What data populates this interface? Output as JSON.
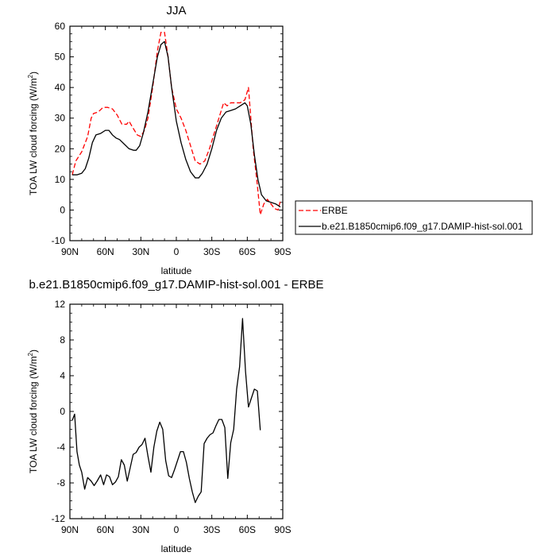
{
  "chart_data": [
    {
      "type": "line",
      "title": "JJA",
      "xlabel": "latitude",
      "ylabel": "TOA LW cloud forcing (W/m",
      "ylabel_sup": "2",
      "ylabel_close": ")",
      "xlim": [
        90,
        -90
      ],
      "ylim": [
        -10,
        60
      ],
      "xticks": [
        {
          "value": 90,
          "label": "90N"
        },
        {
          "value": 60,
          "label": "60N"
        },
        {
          "value": 30,
          "label": "30N"
        },
        {
          "value": 0,
          "label": "0"
        },
        {
          "value": -30,
          "label": "30S"
        },
        {
          "value": -60,
          "label": "60S"
        },
        {
          "value": -90,
          "label": "90S"
        }
      ],
      "yticks": [
        -10,
        0,
        10,
        20,
        30,
        40,
        50,
        60
      ],
      "legend_position": "right",
      "series": [
        {
          "name": "ERBE",
          "style": "dashed",
          "color": "#ff0000",
          "points": [
            [
              88,
              11.5
            ],
            [
              85,
              16
            ],
            [
              80,
              19
            ],
            [
              77,
              22
            ],
            [
              75,
              24
            ],
            [
              72,
              30
            ],
            [
              70,
              31.5
            ],
            [
              66,
              32
            ],
            [
              62,
              33.5
            ],
            [
              58,
              33.5
            ],
            [
              54,
              33
            ],
            [
              50,
              31
            ],
            [
              46,
              28
            ],
            [
              42,
              28
            ],
            [
              40,
              29
            ],
            [
              37,
              27
            ],
            [
              33,
              24.5
            ],
            [
              30,
              24
            ],
            [
              27,
              26
            ],
            [
              24,
              30
            ],
            [
              20,
              40
            ],
            [
              16,
              52
            ],
            [
              13,
              58
            ],
            [
              10,
              58
            ],
            [
              7,
              50
            ],
            [
              4,
              40
            ],
            [
              0,
              33
            ],
            [
              -4,
              30
            ],
            [
              -8,
              26
            ],
            [
              -12,
              21
            ],
            [
              -16,
              16
            ],
            [
              -20,
              15
            ],
            [
              -24,
              16
            ],
            [
              -28,
              20
            ],
            [
              -32,
              25
            ],
            [
              -36,
              30
            ],
            [
              -40,
              35
            ],
            [
              -43,
              34
            ],
            [
              -46,
              35
            ],
            [
              -50,
              35
            ],
            [
              -54,
              35
            ],
            [
              -58,
              36
            ],
            [
              -61,
              40
            ],
            [
              -62,
              35
            ],
            [
              -65,
              20
            ],
            [
              -68,
              10
            ],
            [
              -71,
              -1.5
            ],
            [
              -74,
              2
            ],
            [
              -77,
              3.5
            ],
            [
              -80,
              2
            ],
            [
              -83,
              0.5
            ],
            [
              -86,
              0
            ],
            [
              -88,
              3
            ]
          ]
        },
        {
          "name": "b.e21.B1850cmip6.f09_g17.DAMIP-hist-sol.001",
          "style": "solid",
          "color": "#000000",
          "points": [
            [
              88,
              11.5
            ],
            [
              84,
              11.5
            ],
            [
              80,
              12
            ],
            [
              77,
              13.5
            ],
            [
              74,
              17
            ],
            [
              71,
              22
            ],
            [
              68,
              24.5
            ],
            [
              64,
              25
            ],
            [
              60,
              26
            ],
            [
              57,
              26
            ],
            [
              54,
              24.5
            ],
            [
              51,
              23.5
            ],
            [
              48,
              23
            ],
            [
              44,
              21.5
            ],
            [
              40,
              20
            ],
            [
              36,
              19.5
            ],
            [
              34,
              19.5
            ],
            [
              31,
              21
            ],
            [
              28,
              25
            ],
            [
              24,
              32
            ],
            [
              20,
              41
            ],
            [
              16,
              50
            ],
            [
              13,
              54
            ],
            [
              10,
              55
            ],
            [
              7,
              50
            ],
            [
              4,
              40
            ],
            [
              0,
              29
            ],
            [
              -4,
              22
            ],
            [
              -8,
              16.5
            ],
            [
              -12,
              12.5
            ],
            [
              -16,
              10.5
            ],
            [
              -19,
              10.5
            ],
            [
              -22,
              12
            ],
            [
              -26,
              15
            ],
            [
              -30,
              20
            ],
            [
              -34,
              26
            ],
            [
              -38,
              30
            ],
            [
              -42,
              32
            ],
            [
              -46,
              32.5
            ],
            [
              -50,
              33
            ],
            [
              -54,
              34
            ],
            [
              -58,
              35
            ],
            [
              -60,
              34
            ],
            [
              -63,
              28
            ],
            [
              -66,
              18
            ],
            [
              -69,
              10
            ],
            [
              -72,
              5
            ],
            [
              -76,
              3
            ],
            [
              -80,
              2.5
            ],
            [
              -84,
              2
            ],
            [
              -88,
              1
            ]
          ]
        }
      ]
    },
    {
      "type": "line",
      "title": "b.e21.B1850cmip6.f09_g17.DAMIP-hist-sol.001 - ERBE",
      "xlabel": "latitude",
      "ylabel": "TOA LW cloud forcing (W/m",
      "ylabel_sup": "2",
      "ylabel_close": ")",
      "xlim": [
        90,
        -90
      ],
      "ylim": [
        -12,
        12
      ],
      "xticks": [
        {
          "value": 90,
          "label": "90N"
        },
        {
          "value": 60,
          "label": "60N"
        },
        {
          "value": 30,
          "label": "30N"
        },
        {
          "value": 0,
          "label": "0"
        },
        {
          "value": -30,
          "label": "30S"
        },
        {
          "value": -60,
          "label": "60S"
        },
        {
          "value": -90,
          "label": "90S"
        }
      ],
      "yticks": [
        -12,
        -8,
        -4,
        0,
        4,
        8,
        12
      ],
      "series": [
        {
          "style": "solid",
          "color": "#000000",
          "points": [
            [
              88,
              -1
            ],
            [
              86,
              -0.3
            ],
            [
              84,
              -4.5
            ],
            [
              82,
              -6
            ],
            [
              80,
              -6.8
            ],
            [
              77.5,
              -8.7
            ],
            [
              75,
              -7.4
            ],
            [
              72,
              -7.8
            ],
            [
              69.5,
              -8.3
            ],
            [
              67,
              -7.8
            ],
            [
              64,
              -7.1
            ],
            [
              61.5,
              -8.2
            ],
            [
              59,
              -7.1
            ],
            [
              56.5,
              -7.3
            ],
            [
              54,
              -8.2
            ],
            [
              51.5,
              -7.9
            ],
            [
              49,
              -7.3
            ],
            [
              46.5,
              -5.4
            ],
            [
              44,
              -6
            ],
            [
              41.5,
              -7.8
            ],
            [
              39,
              -6.3
            ],
            [
              36.5,
              -4.8
            ],
            [
              34,
              -4.6
            ],
            [
              31.5,
              -4
            ],
            [
              29,
              -3.7
            ],
            [
              26.5,
              -3
            ],
            [
              24,
              -5
            ],
            [
              21.5,
              -6.8
            ],
            [
              19,
              -4
            ],
            [
              16.5,
              -2.2
            ],
            [
              14,
              -1.2
            ],
            [
              11.5,
              -2
            ],
            [
              9,
              -5.5
            ],
            [
              6.5,
              -7.2
            ],
            [
              4,
              -7.4
            ],
            [
              1.5,
              -6.5
            ],
            [
              -1,
              -5.5
            ],
            [
              -3.5,
              -4.5
            ],
            [
              -6,
              -4.5
            ],
            [
              -8.5,
              -5.7
            ],
            [
              -11,
              -7.5
            ],
            [
              -13.5,
              -9
            ],
            [
              -16,
              -10.2
            ],
            [
              -18.5,
              -9.5
            ],
            [
              -21,
              -9
            ],
            [
              -23.5,
              -3.6
            ],
            [
              -26,
              -3
            ],
            [
              -28.5,
              -2.6
            ],
            [
              -31,
              -2.4
            ],
            [
              -33.5,
              -1.6
            ],
            [
              -36,
              -0.9
            ],
            [
              -38.5,
              -0.9
            ],
            [
              -41,
              -1.8
            ],
            [
              -43.5,
              -7.5
            ],
            [
              -46,
              -3.5
            ],
            [
              -48.5,
              -2
            ],
            [
              -51,
              2.5
            ],
            [
              -53.5,
              5
            ],
            [
              -56,
              10.4
            ],
            [
              -58.5,
              4.5
            ],
            [
              -61,
              0.5
            ],
            [
              -63.5,
              1.5
            ],
            [
              -66,
              2.5
            ],
            [
              -68.5,
              2.3
            ],
            [
              -71,
              -2.1
            ]
          ]
        }
      ]
    }
  ]
}
